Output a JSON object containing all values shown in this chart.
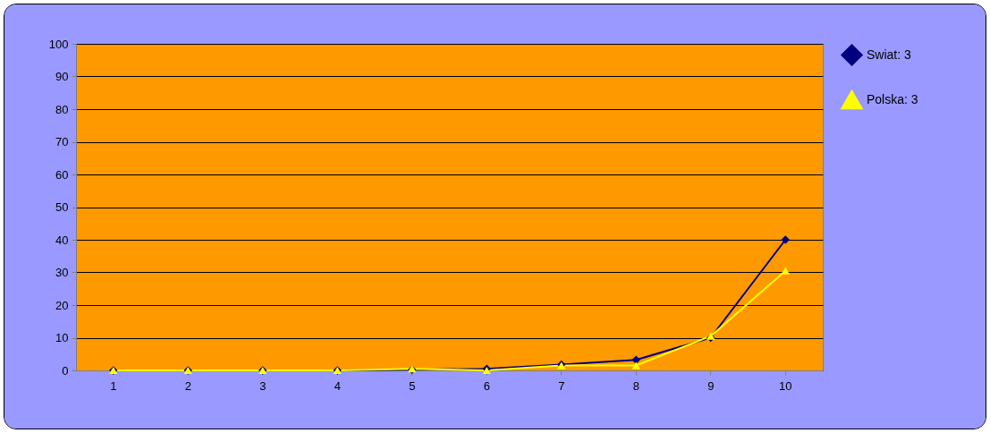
{
  "chart_data": {
    "type": "line",
    "categories": [
      "1",
      "2",
      "3",
      "4",
      "5",
      "6",
      "7",
      "8",
      "9",
      "10"
    ],
    "series": [
      {
        "name": "Swiat: 3",
        "color": "#000080",
        "marker": "diamond",
        "values": [
          0,
          0,
          0,
          0,
          0.2,
          0.5,
          1.8,
          3.2,
          10,
          40
        ]
      },
      {
        "name": "Polska: 3",
        "color": "#ffff00",
        "marker": "triangle",
        "values": [
          0,
          0,
          0,
          0,
          0.5,
          0,
          1.5,
          1.5,
          10.5,
          30.5
        ]
      }
    ],
    "ylim": [
      0,
      100
    ],
    "yticks": [
      0,
      10,
      20,
      30,
      40,
      50,
      60,
      70,
      80,
      90,
      100
    ],
    "grid": "y",
    "legend": "right"
  }
}
